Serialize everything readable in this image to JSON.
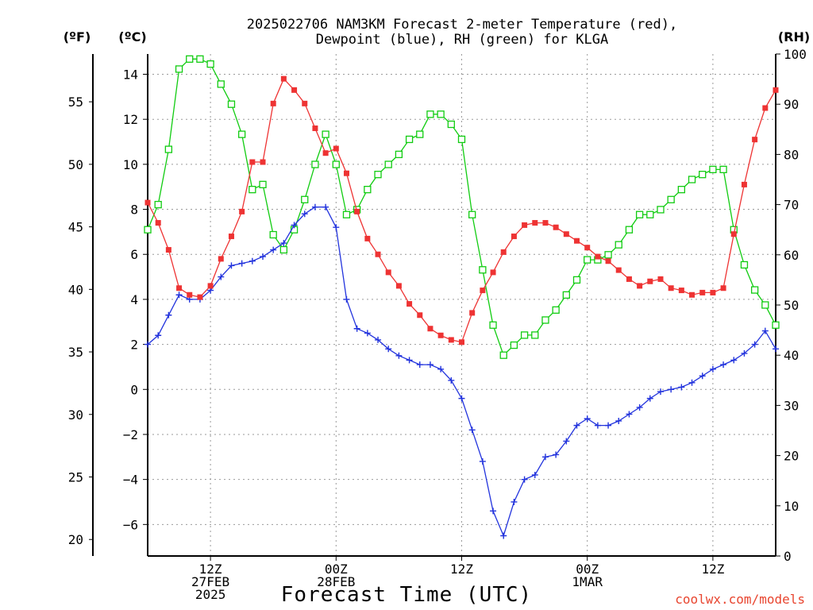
{
  "title_line1": "2025022706 NAM3KM Forecast 2-meter Temperature (red),",
  "title_line2": "Dewpoint (blue), RH (green) for KLGA",
  "xlabel": "Forecast Time (UTC)",
  "credit": "coolwx.com/models",
  "units": {
    "f": "(ºF)",
    "c": "(ºC)",
    "rh": "(RH)"
  },
  "colors": {
    "temperature": "#ee3333",
    "dewpoint": "#2233dd",
    "rh": "#11cc11"
  },
  "chart_data": {
    "type": "line",
    "x_hours_from_init": [
      0,
      1,
      2,
      3,
      4,
      5,
      6,
      7,
      8,
      9,
      10,
      11,
      12,
      13,
      14,
      15,
      16,
      17,
      18,
      19,
      20,
      21,
      22,
      23,
      24,
      25,
      26,
      27,
      28,
      29,
      30,
      31,
      32,
      33,
      34,
      35,
      36,
      37,
      38,
      39,
      40,
      41,
      42,
      43,
      44,
      45,
      46,
      47,
      48,
      49,
      50,
      51,
      52,
      53,
      54,
      55,
      56,
      57,
      58,
      59,
      60
    ],
    "x_range": [
      0,
      60
    ],
    "x_ticks": [
      {
        "hour": 6,
        "lines": [
          "12Z",
          "27FEB",
          "2025"
        ]
      },
      {
        "hour": 18,
        "lines": [
          "00Z",
          "28FEB"
        ]
      },
      {
        "hour": 30,
        "lines": [
          "12Z"
        ]
      },
      {
        "hour": 42,
        "lines": [
          "00Z",
          "1MAR"
        ]
      },
      {
        "hour": 54,
        "lines": [
          "12Z"
        ]
      }
    ],
    "y_left_celsius": {
      "range": [
        -7.4,
        14.9
      ],
      "ticks": [
        -6,
        -4,
        -2,
        0,
        2,
        4,
        6,
        8,
        10,
        12,
        14
      ]
    },
    "y_fahrenheit_ticks": [
      20,
      25,
      30,
      35,
      40,
      45,
      50,
      55
    ],
    "y_right_rh": {
      "range": [
        0,
        100
      ],
      "ticks": [
        0,
        10,
        20,
        30,
        40,
        50,
        60,
        70,
        80,
        90,
        100
      ]
    },
    "series": [
      {
        "name": "Temperature",
        "axis": "celsius",
        "marker": "filled-square",
        "values": [
          8.3,
          7.4,
          6.2,
          4.5,
          4.2,
          4.1,
          4.6,
          5.8,
          6.8,
          7.9,
          10.1,
          10.1,
          12.7,
          13.8,
          13.3,
          12.7,
          11.6,
          10.5,
          10.7,
          9.6,
          7.9,
          6.7,
          6.0,
          5.2,
          4.6,
          3.8,
          3.3,
          2.7,
          2.4,
          2.2,
          2.1,
          3.4,
          4.4,
          5.2,
          6.1,
          6.8,
          7.3,
          7.4,
          7.4,
          7.2,
          6.9,
          6.6,
          6.3,
          5.9,
          5.7,
          5.3,
          4.9,
          4.6,
          4.8,
          4.9,
          4.5,
          4.4,
          4.2,
          4.3,
          4.3,
          4.5,
          6.9,
          9.1,
          11.1,
          12.5,
          13.3
        ]
      },
      {
        "name": "Dewpoint",
        "axis": "celsius",
        "marker": "plus",
        "values": [
          2.0,
          2.4,
          3.3,
          4.2,
          4.0,
          4.0,
          4.4,
          5.0,
          5.5,
          5.6,
          5.7,
          5.9,
          6.2,
          6.5,
          7.3,
          7.8,
          8.1,
          8.1,
          7.2,
          4.0,
          2.7,
          2.5,
          2.2,
          1.8,
          1.5,
          1.3,
          1.1,
          1.1,
          0.9,
          0.4,
          -0.4,
          -1.8,
          -3.2,
          -5.4,
          -6.5,
          -5.0,
          -4.0,
          -3.8,
          -3.0,
          -2.9,
          -2.3,
          -1.6,
          -1.3,
          -1.6,
          -1.6,
          -1.4,
          -1.1,
          -0.8,
          -0.4,
          -0.1,
          0.0,
          0.1,
          0.3,
          0.6,
          0.9,
          1.1,
          1.3,
          1.6,
          2.0,
          2.6,
          1.8
        ]
      },
      {
        "name": "RH",
        "axis": "rh",
        "marker": "open-square",
        "values": [
          65,
          70,
          81,
          97,
          99,
          99,
          98,
          94,
          90,
          84,
          73,
          74,
          64,
          61,
          65,
          71,
          78,
          84,
          78,
          68,
          69,
          73,
          76,
          78,
          80,
          83,
          84,
          88,
          88,
          86,
          83,
          68,
          57,
          46,
          40,
          42,
          44,
          44,
          47,
          49,
          52,
          55,
          59,
          59,
          60,
          62,
          65,
          68,
          68,
          69,
          71,
          73,
          75,
          76,
          77,
          77,
          65,
          58,
          53,
          50,
          46
        ]
      }
    ]
  }
}
